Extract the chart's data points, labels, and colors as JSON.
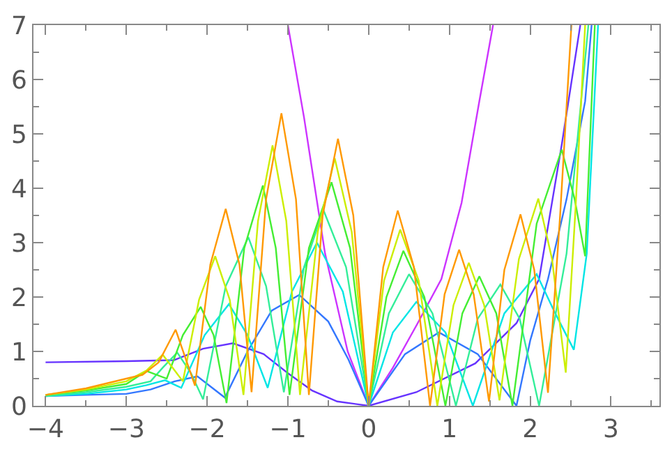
{
  "chart_data": {
    "type": "line",
    "xlim": [
      -4.15,
      3.6
    ],
    "ylim": [
      0,
      7
    ],
    "xticks": [
      {
        "value": -4,
        "label": "−4"
      },
      {
        "value": -3,
        "label": "−3"
      },
      {
        "value": -2,
        "label": "−2"
      },
      {
        "value": -1,
        "label": "−1"
      },
      0,
      1,
      2,
      3
    ],
    "yticks": [
      0,
      1,
      2,
      3,
      4,
      5,
      6,
      7
    ],
    "marker": "none",
    "line_style": "solid",
    "series": [
      {
        "color": "#cc33ff",
        "x": [
          -1.0,
          -0.8,
          -0.54,
          -0.26,
          0,
          0.3,
          0.6,
          0.9,
          1.15,
          1.37,
          1.54
        ],
        "values": [
          7,
          5.3,
          2.8,
          1.0,
          0,
          0.7,
          1.5,
          2.33,
          3.73,
          5.6,
          7
        ]
      },
      {
        "color": "#6633ff",
        "x": [
          -4,
          -3,
          -2.41,
          -2.05,
          -1.68,
          -1.3,
          -1.0,
          -0.7,
          -0.39,
          0,
          0.59,
          1.32,
          1.83,
          2.11,
          2.39,
          2.62
        ],
        "values": [
          0.8,
          0.82,
          0.84,
          1.05,
          1.15,
          0.95,
          0.6,
          0.28,
          0.08,
          0,
          0.25,
          0.78,
          1.52,
          2.33,
          4.8,
          7
        ]
      },
      {
        "color": "#3377ff",
        "x": [
          -4,
          -3.5,
          -3,
          -2.7,
          -2.4,
          -2.12,
          -1.78,
          -1.5,
          -1.2,
          -0.86,
          -0.5,
          -0.25,
          0,
          0.45,
          0.87,
          1.35,
          1.83,
          2.0,
          2.22,
          2.45,
          2.68,
          2.76
        ],
        "values": [
          0.18,
          0.2,
          0.22,
          0.3,
          0.45,
          0.54,
          0.15,
          1.0,
          1.75,
          2.04,
          1.55,
          0.85,
          0,
          0.95,
          1.35,
          0.95,
          0,
          1.2,
          2.33,
          3.8,
          5.6,
          7
        ]
      },
      {
        "color": "#00e5e5",
        "x": [
          -4,
          -3.5,
          -3,
          -2.75,
          -2.52,
          -2.32,
          -2.03,
          -1.73,
          -1.5,
          -1.25,
          -0.95,
          -0.64,
          -0.32,
          0,
          0.3,
          0.59,
          0.95,
          1.29,
          1.68,
          2.08,
          2.31,
          2.54,
          2.7,
          2.84
        ],
        "values": [
          0.18,
          0.22,
          0.3,
          0.38,
          0.47,
          0.33,
          1.3,
          1.87,
          1.3,
          0.33,
          2.1,
          3.0,
          2.1,
          0,
          1.35,
          1.91,
          1.35,
          0,
          1.7,
          2.42,
          1.7,
          1.03,
          2.8,
          7
        ]
      },
      {
        "color": "#33ee99",
        "x": [
          -4,
          -3.5,
          -3,
          -2.7,
          -2.55,
          -2.37,
          -2.2,
          -2.05,
          -1.77,
          -1.49,
          -1.27,
          -1.05,
          -0.8,
          -0.56,
          -0.28,
          0,
          0.25,
          0.5,
          0.79,
          1.08,
          1.35,
          1.63,
          1.87,
          2.11,
          2.45,
          2.72
        ],
        "values": [
          0.18,
          0.25,
          0.35,
          0.45,
          0.7,
          0.98,
          0.6,
          0.12,
          2.2,
          3.1,
          2.2,
          0.25,
          2.55,
          3.6,
          2.55,
          0,
          1.7,
          2.42,
          1.7,
          0,
          1.6,
          2.23,
          1.6,
          0,
          2.8,
          7
        ]
      },
      {
        "color": "#44ee33",
        "x": [
          -4,
          -3.5,
          -3,
          -2.75,
          -2.5,
          -2.3,
          -2.08,
          -1.92,
          -1.76,
          -1.54,
          -1.31,
          -1.15,
          -0.98,
          -0.74,
          -0.46,
          -0.23,
          0,
          0.22,
          0.43,
          0.69,
          0.95,
          1.16,
          1.37,
          1.58,
          1.78,
          2.08,
          2.39,
          2.55,
          2.68,
          2.8
        ],
        "values": [
          0.2,
          0.28,
          0.4,
          0.64,
          0.5,
          1.3,
          1.82,
          1.3,
          0.05,
          2.9,
          4.05,
          2.9,
          0.2,
          2.9,
          4.11,
          2.9,
          0,
          2.0,
          2.85,
          2.0,
          0,
          1.7,
          2.38,
          1.7,
          0,
          3.35,
          4.71,
          3.8,
          2.75,
          7
        ]
      },
      {
        "color": "#ccee00",
        "x": [
          -4,
          -3.5,
          -3,
          -2.75,
          -2.55,
          -2.3,
          -2.1,
          -1.9,
          -1.72,
          -1.55,
          -1.37,
          -1.19,
          -1.02,
          -0.85,
          -0.63,
          -0.42,
          -0.21,
          0,
          0.19,
          0.39,
          0.62,
          0.85,
          1.05,
          1.24,
          1.43,
          1.62,
          1.86,
          2.1,
          2.27,
          2.44,
          2.56,
          2.68
        ],
        "values": [
          0.2,
          0.3,
          0.45,
          0.65,
          0.94,
          0.45,
          1.95,
          2.75,
          1.95,
          0.2,
          3.4,
          4.79,
          3.4,
          0.2,
          3.2,
          4.55,
          3.2,
          0,
          2.3,
          3.24,
          2.3,
          0,
          1.85,
          2.63,
          1.85,
          0.1,
          2.7,
          3.81,
          2.7,
          0.61,
          3.6,
          7
        ]
      },
      {
        "color": "#ff9900",
        "x": [
          -4,
          -3.5,
          -3,
          -2.8,
          -2.6,
          -2.39,
          -2.15,
          -1.96,
          -1.77,
          -1.6,
          -1.45,
          -1.27,
          -1.08,
          -0.9,
          -0.74,
          -0.57,
          -0.38,
          -0.19,
          0,
          0.18,
          0.36,
          0.56,
          0.76,
          0.94,
          1.12,
          1.3,
          1.49,
          1.68,
          1.88,
          2.05,
          2.22,
          2.37,
          2.51
        ],
        "values": [
          0.2,
          0.32,
          0.5,
          0.57,
          0.8,
          1.4,
          0.37,
          2.6,
          3.62,
          2.6,
          0.25,
          3.8,
          5.38,
          3.8,
          0.2,
          3.5,
          4.91,
          3.5,
          0,
          2.55,
          3.59,
          2.55,
          0,
          2.05,
          2.87,
          2.05,
          0.08,
          2.5,
          3.52,
          2.5,
          0.24,
          3.5,
          7
        ]
      }
    ]
  }
}
